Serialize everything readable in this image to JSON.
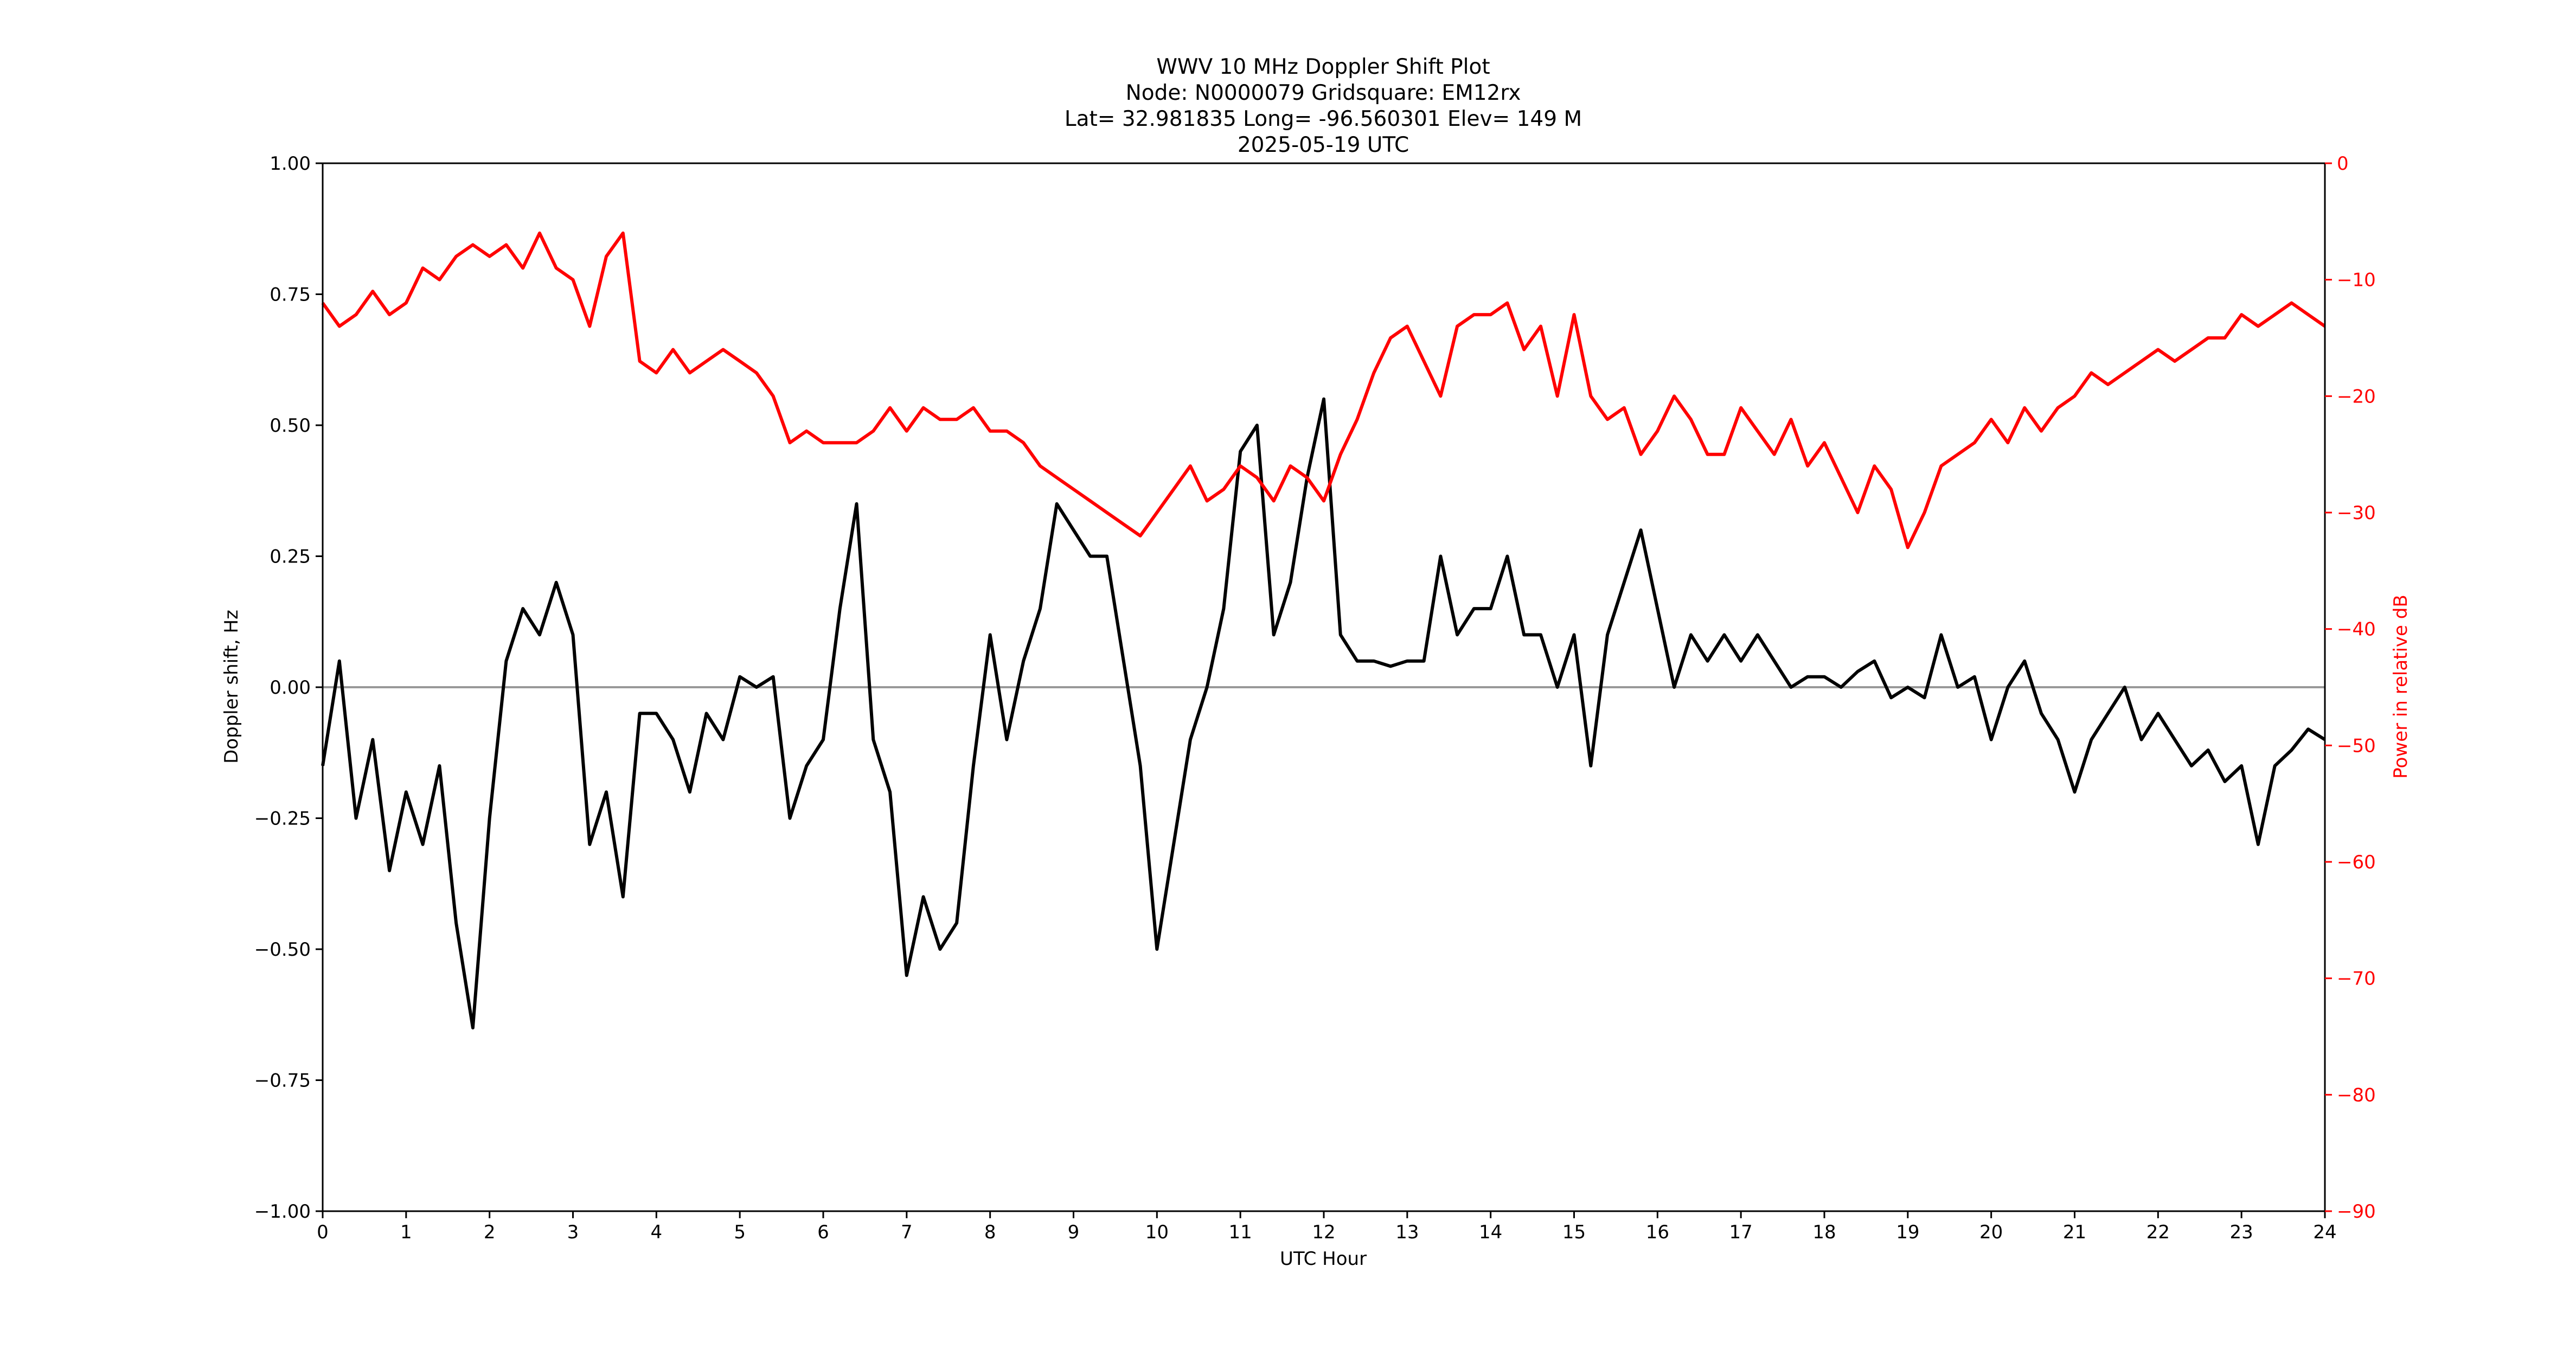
{
  "chart_data": {
    "type": "line",
    "title_lines": [
      "WWV 10 MHz Doppler Shift Plot",
      "Node:  N0000079     Gridsquare:  EM12rx",
      "Lat= 32.981835    Long= -96.560301    Elev= 149 M",
      "2025-05-19  UTC"
    ],
    "xlabel": "UTC Hour",
    "ylabel": "Doppler shift, Hz",
    "y2label": "Power in relative dB",
    "xlim": [
      0,
      24
    ],
    "ylim": [
      -1.0,
      1.0
    ],
    "y2lim": [
      -90,
      0
    ],
    "x_ticks": [
      0,
      1,
      2,
      3,
      4,
      5,
      6,
      7,
      8,
      9,
      10,
      11,
      12,
      13,
      14,
      15,
      16,
      17,
      18,
      19,
      20,
      21,
      22,
      23,
      24
    ],
    "x_tick_labels": [
      "0",
      "1",
      "2",
      "3",
      "4",
      "5",
      "6",
      "7",
      "8",
      "9",
      "10",
      "11",
      "12",
      "13",
      "14",
      "15",
      "16",
      "17",
      "18",
      "19",
      "20",
      "21",
      "22",
      "23",
      "24"
    ],
    "y_ticks": [
      -1.0,
      -0.75,
      -0.5,
      -0.25,
      0.0,
      0.25,
      0.5,
      0.75,
      1.0
    ],
    "y_tick_labels": [
      "−1.00",
      "−0.75",
      "−0.50",
      "−0.25",
      "0.00",
      "0.25",
      "0.50",
      "0.75",
      "1.00"
    ],
    "y2_ticks": [
      0,
      -10,
      -20,
      -30,
      -40,
      -50,
      -60,
      -70,
      -80,
      -90
    ],
    "y2_tick_labels": [
      "0",
      "−10",
      "−20",
      "−30",
      "−40",
      "−50",
      "−60",
      "−70",
      "−80",
      "−90"
    ],
    "zero_line": 0.0,
    "grid": false,
    "series": [
      {
        "axis": "left",
        "color": "#000000",
        "x": [
          0,
          0.2,
          0.4,
          0.6,
          0.8,
          1.0,
          1.2,
          1.4,
          1.6,
          1.8,
          2.0,
          2.2,
          2.4,
          2.6,
          2.8,
          3.0,
          3.2,
          3.4,
          3.6,
          3.8,
          4.0,
          4.2,
          4.4,
          4.6,
          4.8,
          5.0,
          5.2,
          5.4,
          5.6,
          5.8,
          6.0,
          6.2,
          6.4,
          6.6,
          6.8,
          7.0,
          7.2,
          7.4,
          7.6,
          7.8,
          8.0,
          8.2,
          8.4,
          8.6,
          8.8,
          9.0,
          9.2,
          9.4,
          9.6,
          9.8,
          10.0,
          10.2,
          10.4,
          10.6,
          10.8,
          11.0,
          11.2,
          11.4,
          11.6,
          11.8,
          12.0,
          12.2,
          12.4,
          12.6,
          12.8,
          13.0,
          13.2,
          13.4,
          13.6,
          13.8,
          14.0,
          14.2,
          14.4,
          14.6,
          14.8,
          15.0,
          15.2,
          15.4,
          15.6,
          15.8,
          16.0,
          16.2,
          16.4,
          16.6,
          16.8,
          17.0,
          17.2,
          17.4,
          17.6,
          17.8,
          18.0,
          18.2,
          18.4,
          18.6,
          18.8,
          19.0,
          19.2,
          19.4,
          19.6,
          19.8,
          20.0,
          20.2,
          20.4,
          20.6,
          20.8,
          21.0,
          21.2,
          21.4,
          21.6,
          21.8,
          22.0,
          22.2,
          22.4,
          22.6,
          22.8,
          23.0,
          23.2,
          23.4,
          23.6,
          23.8,
          24.0
        ],
        "values": [
          -0.15,
          0.05,
          -0.25,
          -0.1,
          -0.35,
          -0.2,
          -0.3,
          -0.15,
          -0.45,
          -0.65,
          -0.25,
          0.05,
          0.15,
          0.1,
          0.2,
          0.1,
          -0.3,
          -0.2,
          -0.4,
          -0.05,
          -0.05,
          -0.1,
          -0.2,
          -0.05,
          -0.1,
          0.02,
          0.0,
          0.02,
          -0.25,
          -0.15,
          -0.1,
          0.15,
          0.35,
          -0.1,
          -0.2,
          -0.55,
          -0.4,
          -0.5,
          -0.45,
          -0.15,
          0.1,
          -0.1,
          0.05,
          0.15,
          0.35,
          0.3,
          0.25,
          0.25,
          0.05,
          -0.15,
          -0.5,
          -0.3,
          -0.1,
          0.0,
          0.15,
          0.45,
          0.5,
          0.1,
          0.2,
          0.4,
          0.55,
          0.1,
          0.05,
          0.05,
          0.04,
          0.05,
          0.05,
          0.25,
          0.1,
          0.15,
          0.15,
          0.25,
          0.1,
          0.1,
          0.0,
          0.1,
          -0.15,
          0.1,
          0.2,
          0.3,
          0.15,
          0.0,
          0.1,
          0.05,
          0.1,
          0.05,
          0.1,
          0.05,
          0.0,
          0.02,
          0.02,
          0.0,
          0.03,
          0.05,
          -0.02,
          0.0,
          -0.02,
          0.1,
          0.0,
          0.02,
          -0.1,
          0.0,
          0.05,
          -0.05,
          -0.1,
          -0.2,
          -0.1,
          -0.05,
          0.0,
          -0.1,
          -0.05,
          -0.1,
          -0.15,
          -0.12,
          -0.18,
          -0.15,
          -0.3,
          -0.15,
          -0.12,
          -0.08,
          -0.1
        ]
      },
      {
        "axis": "right",
        "color": "#ff0000",
        "x": [
          0,
          0.2,
          0.4,
          0.6,
          0.8,
          1.0,
          1.2,
          1.4,
          1.6,
          1.8,
          2.0,
          2.2,
          2.4,
          2.6,
          2.8,
          3.0,
          3.2,
          3.4,
          3.6,
          3.8,
          4.0,
          4.2,
          4.4,
          4.6,
          4.8,
          5.0,
          5.2,
          5.4,
          5.6,
          5.8,
          6.0,
          6.2,
          6.4,
          6.6,
          6.8,
          7.0,
          7.2,
          7.4,
          7.6,
          7.8,
          8.0,
          8.2,
          8.4,
          8.6,
          8.8,
          9.0,
          9.2,
          9.4,
          9.6,
          9.8,
          10.0,
          10.2,
          10.4,
          10.6,
          10.8,
          11.0,
          11.2,
          11.4,
          11.6,
          11.8,
          12.0,
          12.2,
          12.4,
          12.6,
          12.8,
          13.0,
          13.2,
          13.4,
          13.6,
          13.8,
          14.0,
          14.2,
          14.4,
          14.6,
          14.8,
          15.0,
          15.2,
          15.4,
          15.6,
          15.8,
          16.0,
          16.2,
          16.4,
          16.6,
          16.8,
          17.0,
          17.2,
          17.4,
          17.6,
          17.8,
          18.0,
          18.2,
          18.4,
          18.6,
          18.8,
          19.0,
          19.2,
          19.4,
          19.6,
          19.8,
          20.0,
          20.2,
          20.4,
          20.6,
          20.8,
          21.0,
          21.2,
          21.4,
          21.6,
          21.8,
          22.0,
          22.2,
          22.4,
          22.6,
          22.8,
          23.0,
          23.2,
          23.4,
          23.6,
          23.8,
          24.0
        ],
        "values": [
          -12,
          -14,
          -13,
          -11,
          -13,
          -12,
          -9,
          -10,
          -8,
          -7,
          -8,
          -7,
          -9,
          -6,
          -9,
          -10,
          -14,
          -8,
          -6,
          -17,
          -18,
          -16,
          -18,
          -17,
          -16,
          -17,
          -18,
          -20,
          -24,
          -23,
          -24,
          -24,
          -24,
          -23,
          -21,
          -23,
          -21,
          -22,
          -22,
          -21,
          -23,
          -23,
          -24,
          -26,
          -27,
          -28,
          -29,
          -30,
          -31,
          -32,
          -30,
          -28,
          -26,
          -29,
          -28,
          -26,
          -27,
          -29,
          -26,
          -27,
          -29,
          -25,
          -22,
          -18,
          -15,
          -14,
          -17,
          -20,
          -14,
          -13,
          -13,
          -12,
          -16,
          -14,
          -20,
          -13,
          -20,
          -22,
          -21,
          -25,
          -23,
          -20,
          -22,
          -25,
          -25,
          -21,
          -23,
          -25,
          -22,
          -26,
          -24,
          -27,
          -30,
          -26,
          -28,
          -33,
          -30,
          -26,
          -25,
          -24,
          -22,
          -24,
          -21,
          -23,
          -21,
          -20,
          -18,
          -19,
          -18,
          -17,
          -16,
          -17,
          -16,
          -15,
          -15,
          -13,
          -14,
          -13,
          -12,
          -13,
          -14
        ]
      }
    ]
  }
}
